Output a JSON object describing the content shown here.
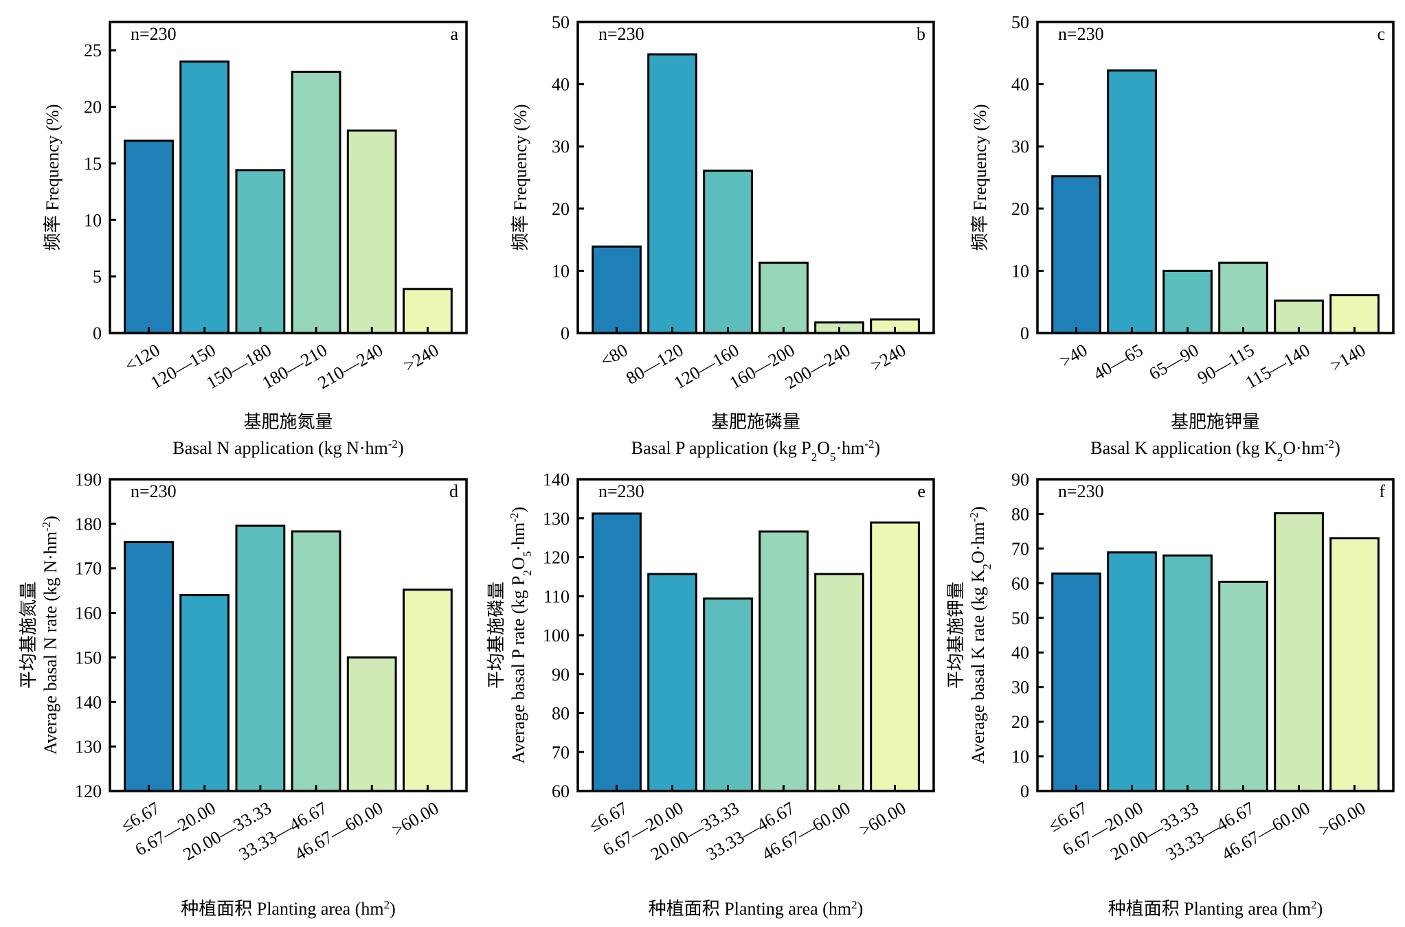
{
  "chart_data": [
    {
      "id": "a",
      "type": "bar",
      "panel_label": "a",
      "annotation": "n=230",
      "categories": [
        "<120",
        "120—150",
        "150—180",
        "180—210",
        "210—240",
        ">240"
      ],
      "values": [
        17.0,
        24.0,
        14.4,
        23.1,
        17.9,
        3.9
      ],
      "ylabel": "频率 Frequency (%)",
      "xlabel_cn": "基肥施氮量",
      "xlabel_en": "Basal N application (kg N·hm⁻²)",
      "ylim": [
        0,
        27.5
      ],
      "yticks": [
        0,
        5,
        10,
        15,
        20,
        25
      ],
      "grid": false
    },
    {
      "id": "b",
      "type": "bar",
      "panel_label": "b",
      "annotation": "n=230",
      "categories": [
        "<80",
        "80—120",
        "120—160",
        "160—200",
        "200—240",
        ">240"
      ],
      "values": [
        13.9,
        44.8,
        26.1,
        11.3,
        1.7,
        2.2
      ],
      "ylabel": "频率 Frequency (%)",
      "xlabel_cn": "基肥施磷量",
      "xlabel_en": "Basal P application (kg P₂O₅·hm⁻²)",
      "ylim": [
        0,
        50
      ],
      "yticks": [
        0,
        10,
        20,
        30,
        40,
        50
      ],
      "grid": false
    },
    {
      "id": "c",
      "type": "bar",
      "panel_label": "c",
      "annotation": "n=230",
      "categories": [
        ">40",
        "40—65",
        "65—90",
        "90—115",
        "115—140",
        ">140"
      ],
      "values": [
        25.2,
        42.2,
        10.0,
        11.3,
        5.2,
        6.1
      ],
      "ylabel": "频率 Frequency (%)",
      "xlabel_cn": "基肥施钾量",
      "xlabel_en": "Basal K application (kg K₂O·hm⁻²)",
      "ylim": [
        0,
        50
      ],
      "yticks": [
        0,
        10,
        20,
        30,
        40,
        50
      ],
      "grid": false
    },
    {
      "id": "d",
      "type": "bar",
      "panel_label": "d",
      "annotation": "n=230",
      "categories": [
        "≤6.67",
        "6.67—20.00",
        "20.00—33.33",
        "33.33—46.67",
        "46.67—60.00",
        ">60.00"
      ],
      "values": [
        175.9,
        164.0,
        179.6,
        178.3,
        150.0,
        165.2
      ],
      "ylabel_cn": "平均基施氮量",
      "ylabel_en": "Average basal N rate (kg N·hm⁻²)",
      "xlabel": "种植面积 Planting area (hm²)",
      "ylim": [
        120,
        190
      ],
      "yticks": [
        120,
        130,
        140,
        150,
        160,
        170,
        180,
        190
      ],
      "grid": false
    },
    {
      "id": "e",
      "type": "bar",
      "panel_label": "e",
      "annotation": "n=230",
      "categories": [
        "≤6.67",
        "6.67—20.00",
        "20.00—33.33",
        "33.33—46.67",
        "46.67—60.00",
        ">60.00"
      ],
      "values": [
        131.2,
        115.7,
        109.4,
        126.6,
        115.7,
        128.9
      ],
      "ylabel_cn": "平均基施磷量",
      "ylabel_en": "Average basal P rate (kg P₂O₅·hm⁻²)",
      "xlabel": "种植面积 Planting area (hm²)",
      "ylim": [
        60,
        140
      ],
      "yticks": [
        60,
        70,
        80,
        90,
        100,
        110,
        120,
        130,
        140
      ],
      "grid": false
    },
    {
      "id": "f",
      "type": "bar",
      "panel_label": "f",
      "annotation": "n=230",
      "categories": [
        "≤6.67",
        "6.67—20.00",
        "20.00—33.33",
        "33.33—46.67",
        "46.67—60.00",
        ">60.00"
      ],
      "values": [
        62.8,
        68.9,
        68.0,
        60.4,
        80.2,
        73.0
      ],
      "ylabel_cn": "平均基施钾量",
      "ylabel_en": "Average basal K rate (kg K₂O·hm⁻²)",
      "xlabel": "种植面积 Planting area (hm²)",
      "ylim": [
        0,
        90
      ],
      "yticks": [
        0,
        10,
        20,
        30,
        40,
        50,
        60,
        70,
        80,
        90
      ],
      "grid": false
    }
  ],
  "bar_colors": [
    "#1f80b8",
    "#30a4c2",
    "#5cbdbd",
    "#97d6b8",
    "#cfeab4",
    "#edf7b3"
  ],
  "outline_color": "#000000"
}
